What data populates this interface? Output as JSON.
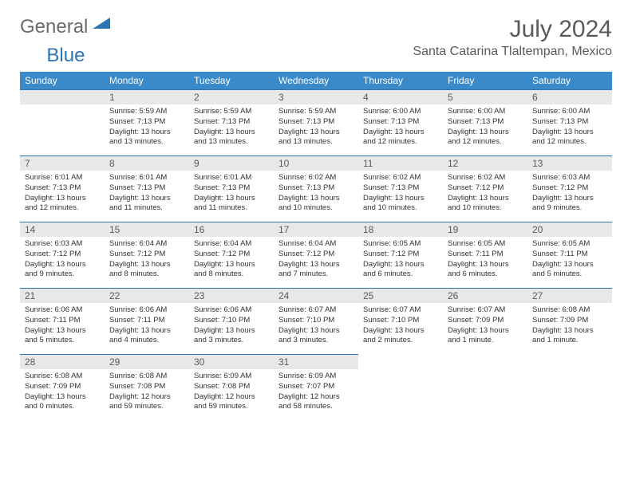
{
  "logo": {
    "general": "General",
    "blue": "Blue"
  },
  "title": "July 2024",
  "location": "Santa Catarina Tlaltempan, Mexico",
  "colors": {
    "header_bg": "#3a8ac9",
    "border": "#2e75b6",
    "daynum_bg": "#e8e8e8",
    "text": "#333333",
    "title_text": "#5a5a5a"
  },
  "weekdays": [
    "Sunday",
    "Monday",
    "Tuesday",
    "Wednesday",
    "Thursday",
    "Friday",
    "Saturday"
  ],
  "weeks": [
    [
      null,
      {
        "n": "1",
        "sr": "5:59 AM",
        "ss": "7:13 PM",
        "dl": "13 hours and 13 minutes."
      },
      {
        "n": "2",
        "sr": "5:59 AM",
        "ss": "7:13 PM",
        "dl": "13 hours and 13 minutes."
      },
      {
        "n": "3",
        "sr": "5:59 AM",
        "ss": "7:13 PM",
        "dl": "13 hours and 13 minutes."
      },
      {
        "n": "4",
        "sr": "6:00 AM",
        "ss": "7:13 PM",
        "dl": "13 hours and 12 minutes."
      },
      {
        "n": "5",
        "sr": "6:00 AM",
        "ss": "7:13 PM",
        "dl": "13 hours and 12 minutes."
      },
      {
        "n": "6",
        "sr": "6:00 AM",
        "ss": "7:13 PM",
        "dl": "13 hours and 12 minutes."
      }
    ],
    [
      {
        "n": "7",
        "sr": "6:01 AM",
        "ss": "7:13 PM",
        "dl": "13 hours and 12 minutes."
      },
      {
        "n": "8",
        "sr": "6:01 AM",
        "ss": "7:13 PM",
        "dl": "13 hours and 11 minutes."
      },
      {
        "n": "9",
        "sr": "6:01 AM",
        "ss": "7:13 PM",
        "dl": "13 hours and 11 minutes."
      },
      {
        "n": "10",
        "sr": "6:02 AM",
        "ss": "7:13 PM",
        "dl": "13 hours and 10 minutes."
      },
      {
        "n": "11",
        "sr": "6:02 AM",
        "ss": "7:13 PM",
        "dl": "13 hours and 10 minutes."
      },
      {
        "n": "12",
        "sr": "6:02 AM",
        "ss": "7:12 PM",
        "dl": "13 hours and 10 minutes."
      },
      {
        "n": "13",
        "sr": "6:03 AM",
        "ss": "7:12 PM",
        "dl": "13 hours and 9 minutes."
      }
    ],
    [
      {
        "n": "14",
        "sr": "6:03 AM",
        "ss": "7:12 PM",
        "dl": "13 hours and 9 minutes."
      },
      {
        "n": "15",
        "sr": "6:04 AM",
        "ss": "7:12 PM",
        "dl": "13 hours and 8 minutes."
      },
      {
        "n": "16",
        "sr": "6:04 AM",
        "ss": "7:12 PM",
        "dl": "13 hours and 8 minutes."
      },
      {
        "n": "17",
        "sr": "6:04 AM",
        "ss": "7:12 PM",
        "dl": "13 hours and 7 minutes."
      },
      {
        "n": "18",
        "sr": "6:05 AM",
        "ss": "7:12 PM",
        "dl": "13 hours and 6 minutes."
      },
      {
        "n": "19",
        "sr": "6:05 AM",
        "ss": "7:11 PM",
        "dl": "13 hours and 6 minutes."
      },
      {
        "n": "20",
        "sr": "6:05 AM",
        "ss": "7:11 PM",
        "dl": "13 hours and 5 minutes."
      }
    ],
    [
      {
        "n": "21",
        "sr": "6:06 AM",
        "ss": "7:11 PM",
        "dl": "13 hours and 5 minutes."
      },
      {
        "n": "22",
        "sr": "6:06 AM",
        "ss": "7:11 PM",
        "dl": "13 hours and 4 minutes."
      },
      {
        "n": "23",
        "sr": "6:06 AM",
        "ss": "7:10 PM",
        "dl": "13 hours and 3 minutes."
      },
      {
        "n": "24",
        "sr": "6:07 AM",
        "ss": "7:10 PM",
        "dl": "13 hours and 3 minutes."
      },
      {
        "n": "25",
        "sr": "6:07 AM",
        "ss": "7:10 PM",
        "dl": "13 hours and 2 minutes."
      },
      {
        "n": "26",
        "sr": "6:07 AM",
        "ss": "7:09 PM",
        "dl": "13 hours and 1 minute."
      },
      {
        "n": "27",
        "sr": "6:08 AM",
        "ss": "7:09 PM",
        "dl": "13 hours and 1 minute."
      }
    ],
    [
      {
        "n": "28",
        "sr": "6:08 AM",
        "ss": "7:09 PM",
        "dl": "13 hours and 0 minutes."
      },
      {
        "n": "29",
        "sr": "6:08 AM",
        "ss": "7:08 PM",
        "dl": "12 hours and 59 minutes."
      },
      {
        "n": "30",
        "sr": "6:09 AM",
        "ss": "7:08 PM",
        "dl": "12 hours and 59 minutes."
      },
      {
        "n": "31",
        "sr": "6:09 AM",
        "ss": "7:07 PM",
        "dl": "12 hours and 58 minutes."
      },
      null,
      null,
      null
    ]
  ],
  "labels": {
    "sunrise": "Sunrise:",
    "sunset": "Sunset:",
    "daylight": "Daylight:"
  }
}
